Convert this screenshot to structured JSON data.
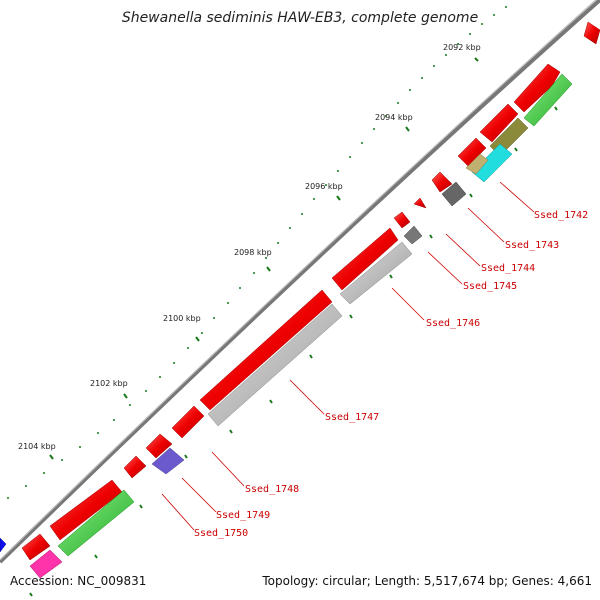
{
  "title": "Shewanella sediminis HAW-EB3, complete genome",
  "footer": {
    "accession": "Accession: NC_009831",
    "summary": "Topology: circular; Length: 5,517,674 bp; Genes: 4,661"
  },
  "ticks": [
    "2092 kbp",
    "2094 kbp",
    "2096 kbp",
    "2098 kbp",
    "2100 kbp",
    "2102 kbp",
    "2104 kbp"
  ],
  "genes": [
    "Ssed_1742",
    "Ssed_1743",
    "Ssed_1744",
    "Ssed_1745",
    "Ssed_1746",
    "Ssed_1747",
    "Ssed_1748",
    "Ssed_1749",
    "Ssed_1750"
  ],
  "colors": {
    "backbone": "#808080",
    "cds": "#ee0000",
    "label": "#cc0000",
    "ticks": "#1a7a1a",
    "grey": "#bbbbbb",
    "green": "#33cc33",
    "purple": "#6a5acd",
    "magenta": "#ff33aa",
    "cyan": "#22dddd",
    "olive": "#8a8a3a",
    "blue": "#1010ee"
  }
}
